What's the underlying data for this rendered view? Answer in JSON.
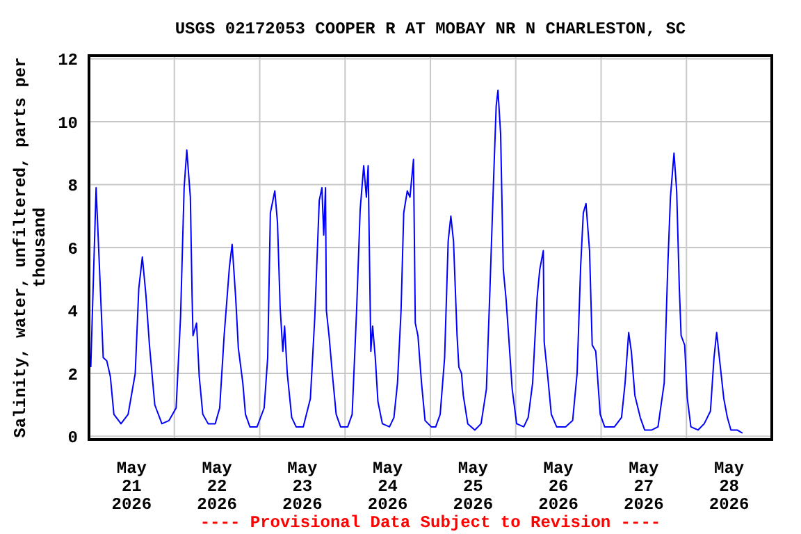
{
  "chart_data": {
    "type": "line",
    "title": "USGS 02172053 COOPER R AT MOBAY NR N CHARLESTON, SC",
    "ylabel": "Salinity, water, unfiltered, parts per thousand",
    "annotations": [
      "---- Provisional Data Subject to Revision ----"
    ],
    "color": "#0000ff",
    "grid": true,
    "xlim": [
      "2026-05-21T00:00",
      "2026-05-29T00:00"
    ],
    "xticks": [
      {
        "value": "2026-05-21T00:00",
        "label": null
      },
      {
        "value": "2026-05-21T12:00",
        "label": "May\n21\n2026"
      },
      {
        "value": "2026-05-22T00:00",
        "label": null
      },
      {
        "value": "2026-05-22T12:00",
        "label": "May\n22\n2026"
      },
      {
        "value": "2026-05-23T00:00",
        "label": null
      },
      {
        "value": "2026-05-23T12:00",
        "label": "May\n23\n2026"
      },
      {
        "value": "2026-05-24T00:00",
        "label": null
      },
      {
        "value": "2026-05-24T12:00",
        "label": "May\n24\n2026"
      },
      {
        "value": "2026-05-25T00:00",
        "label": null
      },
      {
        "value": "2026-05-25T12:00",
        "label": "May\n25\n2026"
      },
      {
        "value": "2026-05-26T00:00",
        "label": null
      },
      {
        "value": "2026-05-26T12:00",
        "label": "May\n26\n2026"
      },
      {
        "value": "2026-05-27T00:00",
        "label": null
      },
      {
        "value": "2026-05-27T12:00",
        "label": "May\n27\n2026"
      },
      {
        "value": "2026-05-28T00:00",
        "label": null
      },
      {
        "value": "2026-05-28T12:00",
        "label": "May\n28\n2026"
      },
      {
        "value": "2026-05-29T00:00",
        "label": null
      }
    ],
    "ylim": [
      -0.1,
      12.1
    ],
    "yticks": [
      0,
      2,
      4,
      6,
      8,
      10,
      12
    ],
    "x": [
      "2026-05-21T00:30",
      "2026-05-21T02:00",
      "2026-05-21T04:00",
      "2026-05-21T05:00",
      "2026-05-21T06:00",
      "2026-05-21T07:00",
      "2026-05-21T09:00",
      "2026-05-21T11:00",
      "2026-05-21T13:00",
      "2026-05-21T14:00",
      "2026-05-21T15:00",
      "2026-05-21T16:00",
      "2026-05-21T17:00",
      "2026-05-21T18:30",
      "2026-05-21T20:30",
      "2026-05-21T22:30",
      "2026-05-22T00:30",
      "2026-05-22T01:45",
      "2026-05-22T02:45",
      "2026-05-22T03:30",
      "2026-05-22T04:30",
      "2026-05-22T05:00",
      "2026-05-22T05:15",
      "2026-05-22T06:15",
      "2026-05-22T07:00",
      "2026-05-22T08:00",
      "2026-05-22T09:30",
      "2026-05-22T11:30",
      "2026-05-22T12:45",
      "2026-05-22T14:00",
      "2026-05-22T15:30",
      "2026-05-22T16:15",
      "2026-05-22T17:15",
      "2026-05-22T18:00",
      "2026-05-22T19:15",
      "2026-05-22T20:00",
      "2026-05-22T21:15",
      "2026-05-22T23:15",
      "2026-05-23T01:15",
      "2026-05-23T02:15",
      "2026-05-23T03:00",
      "2026-05-23T04:15",
      "2026-05-23T05:00",
      "2026-05-23T05:45",
      "2026-05-23T06:30",
      "2026-05-23T07:00",
      "2026-05-23T07:45",
      "2026-05-23T09:00",
      "2026-05-23T10:15",
      "2026-05-23T12:15",
      "2026-05-23T14:15",
      "2026-05-23T15:30",
      "2026-05-23T16:45",
      "2026-05-23T17:30",
      "2026-05-23T18:00",
      "2026-05-23T18:30",
      "2026-05-23T18:45",
      "2026-05-23T19:30",
      "2026-05-23T20:30",
      "2026-05-23T21:30",
      "2026-05-23T22:45",
      "2026-05-24T00:45",
      "2026-05-24T02:00",
      "2026-05-24T03:15",
      "2026-05-24T04:15",
      "2026-05-24T05:15",
      "2026-05-24T06:00",
      "2026-05-24T06:30",
      "2026-05-24T07:15",
      "2026-05-24T07:45",
      "2026-05-24T08:30",
      "2026-05-24T09:15",
      "2026-05-24T10:30",
      "2026-05-24T12:30",
      "2026-05-24T13:45",
      "2026-05-24T14:45",
      "2026-05-24T15:45",
      "2026-05-24T16:30",
      "2026-05-24T17:30",
      "2026-05-24T18:15",
      "2026-05-24T19:15",
      "2026-05-24T19:45",
      "2026-05-24T20:30",
      "2026-05-24T21:30",
      "2026-05-24T22:30",
      "2026-05-25T00:15",
      "2026-05-25T01:30",
      "2026-05-25T02:45",
      "2026-05-25T04:00",
      "2026-05-25T05:00",
      "2026-05-25T05:45",
      "2026-05-25T06:30",
      "2026-05-25T07:00",
      "2026-05-25T07:30",
      "2026-05-25T08:00",
      "2026-05-25T08:45",
      "2026-05-25T09:15",
      "2026-05-25T10:30",
      "2026-05-25T12:30",
      "2026-05-25T14:15",
      "2026-05-25T15:45",
      "2026-05-25T16:45",
      "2026-05-25T17:45",
      "2026-05-25T18:30",
      "2026-05-25T19:00",
      "2026-05-25T19:45",
      "2026-05-25T20:30",
      "2026-05-25T21:15",
      "2026-05-25T22:00",
      "2026-05-25T23:00",
      "2026-05-26T00:15",
      "2026-05-26T02:15",
      "2026-05-26T03:30",
      "2026-05-26T04:45",
      "2026-05-26T06:00",
      "2026-05-26T06:45",
      "2026-05-26T07:45",
      "2026-05-26T08:00",
      "2026-05-26T09:00",
      "2026-05-26T10:00",
      "2026-05-26T11:30",
      "2026-05-26T14:00",
      "2026-05-26T16:00",
      "2026-05-26T17:15",
      "2026-05-26T18:15",
      "2026-05-26T19:00",
      "2026-05-26T19:45",
      "2026-05-26T20:45",
      "2026-05-26T21:30",
      "2026-05-26T22:30",
      "2026-05-26T23:00",
      "2026-05-26T23:45",
      "2026-05-27T01:00",
      "2026-05-27T03:45",
      "2026-05-27T05:45",
      "2026-05-27T06:45",
      "2026-05-27T07:45",
      "2026-05-27T08:30",
      "2026-05-27T09:30",
      "2026-05-27T11:00",
      "2026-05-27T12:15",
      "2026-05-27T14:15",
      "2026-05-27T16:00",
      "2026-05-27T17:45",
      "2026-05-27T18:45",
      "2026-05-27T19:30",
      "2026-05-27T20:30",
      "2026-05-27T21:15",
      "2026-05-27T22:00",
      "2026-05-27T22:30",
      "2026-05-27T23:30",
      "2026-05-28T00:15",
      "2026-05-28T01:15",
      "2026-05-28T03:15",
      "2026-05-28T05:00",
      "2026-05-28T06:45",
      "2026-05-28T07:45",
      "2026-05-28T08:30",
      "2026-05-28T09:15",
      "2026-05-28T10:30",
      "2026-05-28T11:30",
      "2026-05-28T12:30",
      "2026-05-28T14:15",
      "2026-05-28T15:45"
    ],
    "values": [
      2.2,
      7.9,
      2.5,
      2.4,
      1.9,
      0.7,
      0.4,
      0.7,
      2.0,
      4.7,
      5.7,
      4.5,
      2.9,
      1.0,
      0.4,
      0.5,
      0.9,
      3.8,
      7.9,
      9.1,
      7.6,
      4.4,
      3.2,
      3.6,
      1.9,
      0.7,
      0.4,
      0.4,
      0.9,
      3.2,
      5.4,
      6.1,
      4.4,
      2.8,
      1.7,
      0.7,
      0.3,
      0.3,
      0.9,
      2.5,
      7.1,
      7.8,
      6.8,
      4.1,
      2.7,
      3.5,
      2.0,
      0.6,
      0.3,
      0.3,
      1.2,
      3.8,
      7.5,
      7.9,
      6.4,
      7.9,
      4.0,
      3.2,
      1.9,
      0.7,
      0.3,
      0.3,
      0.7,
      4.0,
      7.2,
      8.6,
      7.6,
      8.6,
      2.7,
      3.5,
      2.5,
      1.1,
      0.4,
      0.3,
      0.6,
      1.7,
      4.0,
      7.1,
      7.8,
      7.6,
      8.8,
      3.6,
      3.2,
      1.7,
      0.5,
      0.3,
      0.3,
      0.7,
      2.5,
      6.2,
      7.0,
      6.2,
      4.7,
      3.2,
      2.2,
      2.0,
      1.3,
      0.4,
      0.2,
      0.4,
      1.5,
      4.7,
      8.1,
      10.5,
      11.0,
      9.6,
      5.3,
      4.4,
      3.2,
      1.5,
      0.4,
      0.3,
      0.6,
      1.7,
      4.4,
      5.3,
      5.9,
      3.0,
      1.9,
      0.7,
      0.3,
      0.3,
      0.5,
      2.0,
      5.4,
      7.1,
      7.4,
      5.9,
      2.9,
      2.7,
      1.9,
      0.7,
      0.3,
      0.3,
      0.6,
      1.7,
      3.3,
      2.7,
      1.3,
      0.6,
      0.2,
      0.2,
      0.3,
      1.7,
      5.4,
      7.6,
      9.0,
      7.8,
      4.7,
      3.2,
      2.9,
      1.2,
      0.3,
      0.2,
      0.4,
      0.8,
      2.5,
      3.3,
      2.5,
      1.2,
      0.6,
      0.2,
      0.2,
      0.1
    ]
  }
}
